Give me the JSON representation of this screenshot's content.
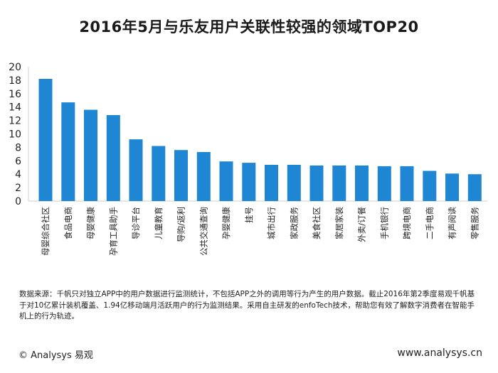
{
  "chart_data": {
    "type": "bar",
    "title": "2016年5月与乐友用户关联性较强的领域TOP20",
    "xlabel": "",
    "ylabel": "",
    "ylim": [
      0,
      20
    ],
    "yticks": [
      0,
      2,
      4,
      6,
      8,
      10,
      12,
      14,
      16,
      18,
      20
    ],
    "grid": false,
    "legend": "none",
    "bar_color": "#1f86d4",
    "categories": [
      "母婴综合社区",
      "食品电商",
      "母婴健康",
      "孕育工具助手",
      "导诊平台",
      "儿童教育",
      "导购/返利",
      "公共交通查询",
      "孕婴健康",
      "挂号",
      "城市出行",
      "家政服务",
      "美食社区",
      "家居家装",
      "外卖/订餐",
      "手机银行",
      "跨境电商",
      "二手电商",
      "有声阅读",
      "零售服务"
    ],
    "values": [
      18.2,
      14.7,
      13.6,
      12.8,
      9.2,
      8.2,
      7.6,
      7.3,
      5.9,
      5.7,
      5.4,
      5.4,
      5.3,
      5.3,
      5.3,
      5.2,
      5.2,
      4.5,
      4.1,
      4.0
    ]
  },
  "note": "数据来源：千帆只对独立APP中的用户数据进行监测统计，不包括APP之外的调用等行为产生的用户数据。截止2016年第2季度易观千帆基于对10亿累计装机覆盖、1.94亿移动端月活跃用户的行为监测结果。采用自主研发的enfoTech技术，帮助您有效了解数字消费者在智能手机上的行为轨迹。",
  "footer": {
    "brand": "© Analysys 易观",
    "url": "www.analysys.cn"
  }
}
